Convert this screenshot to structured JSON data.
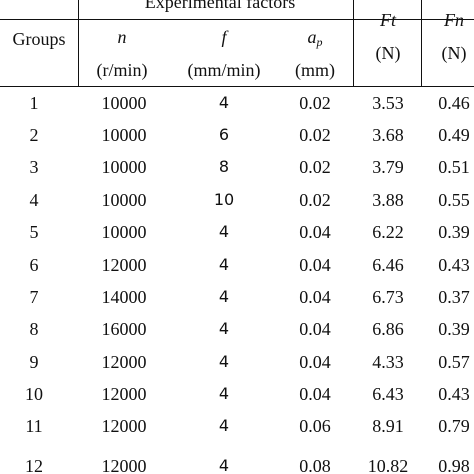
{
  "table": {
    "header": {
      "groups_label": "Groups",
      "experimental_factors_label": "Experimental factors",
      "n_symbol": "n",
      "n_unit": "(r/min)",
      "f_symbol": "f",
      "f_unit": "(mm/min)",
      "ap_symbol_main": "a",
      "ap_symbol_sub": "p",
      "ap_unit": "(mm)",
      "ft_symbol": "Ft",
      "ft_unit": "(N)",
      "fn_symbol": "Fn",
      "fn_unit": "(N)"
    },
    "rows": [
      {
        "group": "1",
        "n": "10000",
        "f": "4",
        "ap": "0.02",
        "ft": "3.53",
        "fn": "0.46"
      },
      {
        "group": "2",
        "n": "10000",
        "f": "6",
        "ap": "0.02",
        "ft": "3.68",
        "fn": "0.49"
      },
      {
        "group": "3",
        "n": "10000",
        "f": "8",
        "ap": "0.02",
        "ft": "3.79",
        "fn": "0.51"
      },
      {
        "group": "4",
        "n": "10000",
        "f": "10",
        "ap": "0.02",
        "ft": "3.88",
        "fn": "0.55"
      },
      {
        "group": "5",
        "n": "10000",
        "f": "4",
        "ap": "0.04",
        "ft": "6.22",
        "fn": "0.39"
      },
      {
        "group": "6",
        "n": "12000",
        "f": "4",
        "ap": "0.04",
        "ft": "6.46",
        "fn": "0.43"
      },
      {
        "group": "7",
        "n": "14000",
        "f": "4",
        "ap": "0.04",
        "ft": "6.73",
        "fn": "0.37"
      },
      {
        "group": "8",
        "n": "16000",
        "f": "4",
        "ap": "0.04",
        "ft": "6.86",
        "fn": "0.39"
      },
      {
        "group": "9",
        "n": "12000",
        "f": "4",
        "ap": "0.04",
        "ft": "4.33",
        "fn": "0.57"
      },
      {
        "group": "10",
        "n": "12000",
        "f": "4",
        "ap": "0.04",
        "ft": "6.43",
        "fn": "0.43"
      },
      {
        "group": "11",
        "n": "12000",
        "f": "4",
        "ap": "0.06",
        "ft": "8.91",
        "fn": "0.79"
      },
      {
        "group": "12",
        "n": "12000",
        "f": "4",
        "ap": "0.08",
        "ft": "10.82",
        "fn": "0.98"
      }
    ]
  }
}
